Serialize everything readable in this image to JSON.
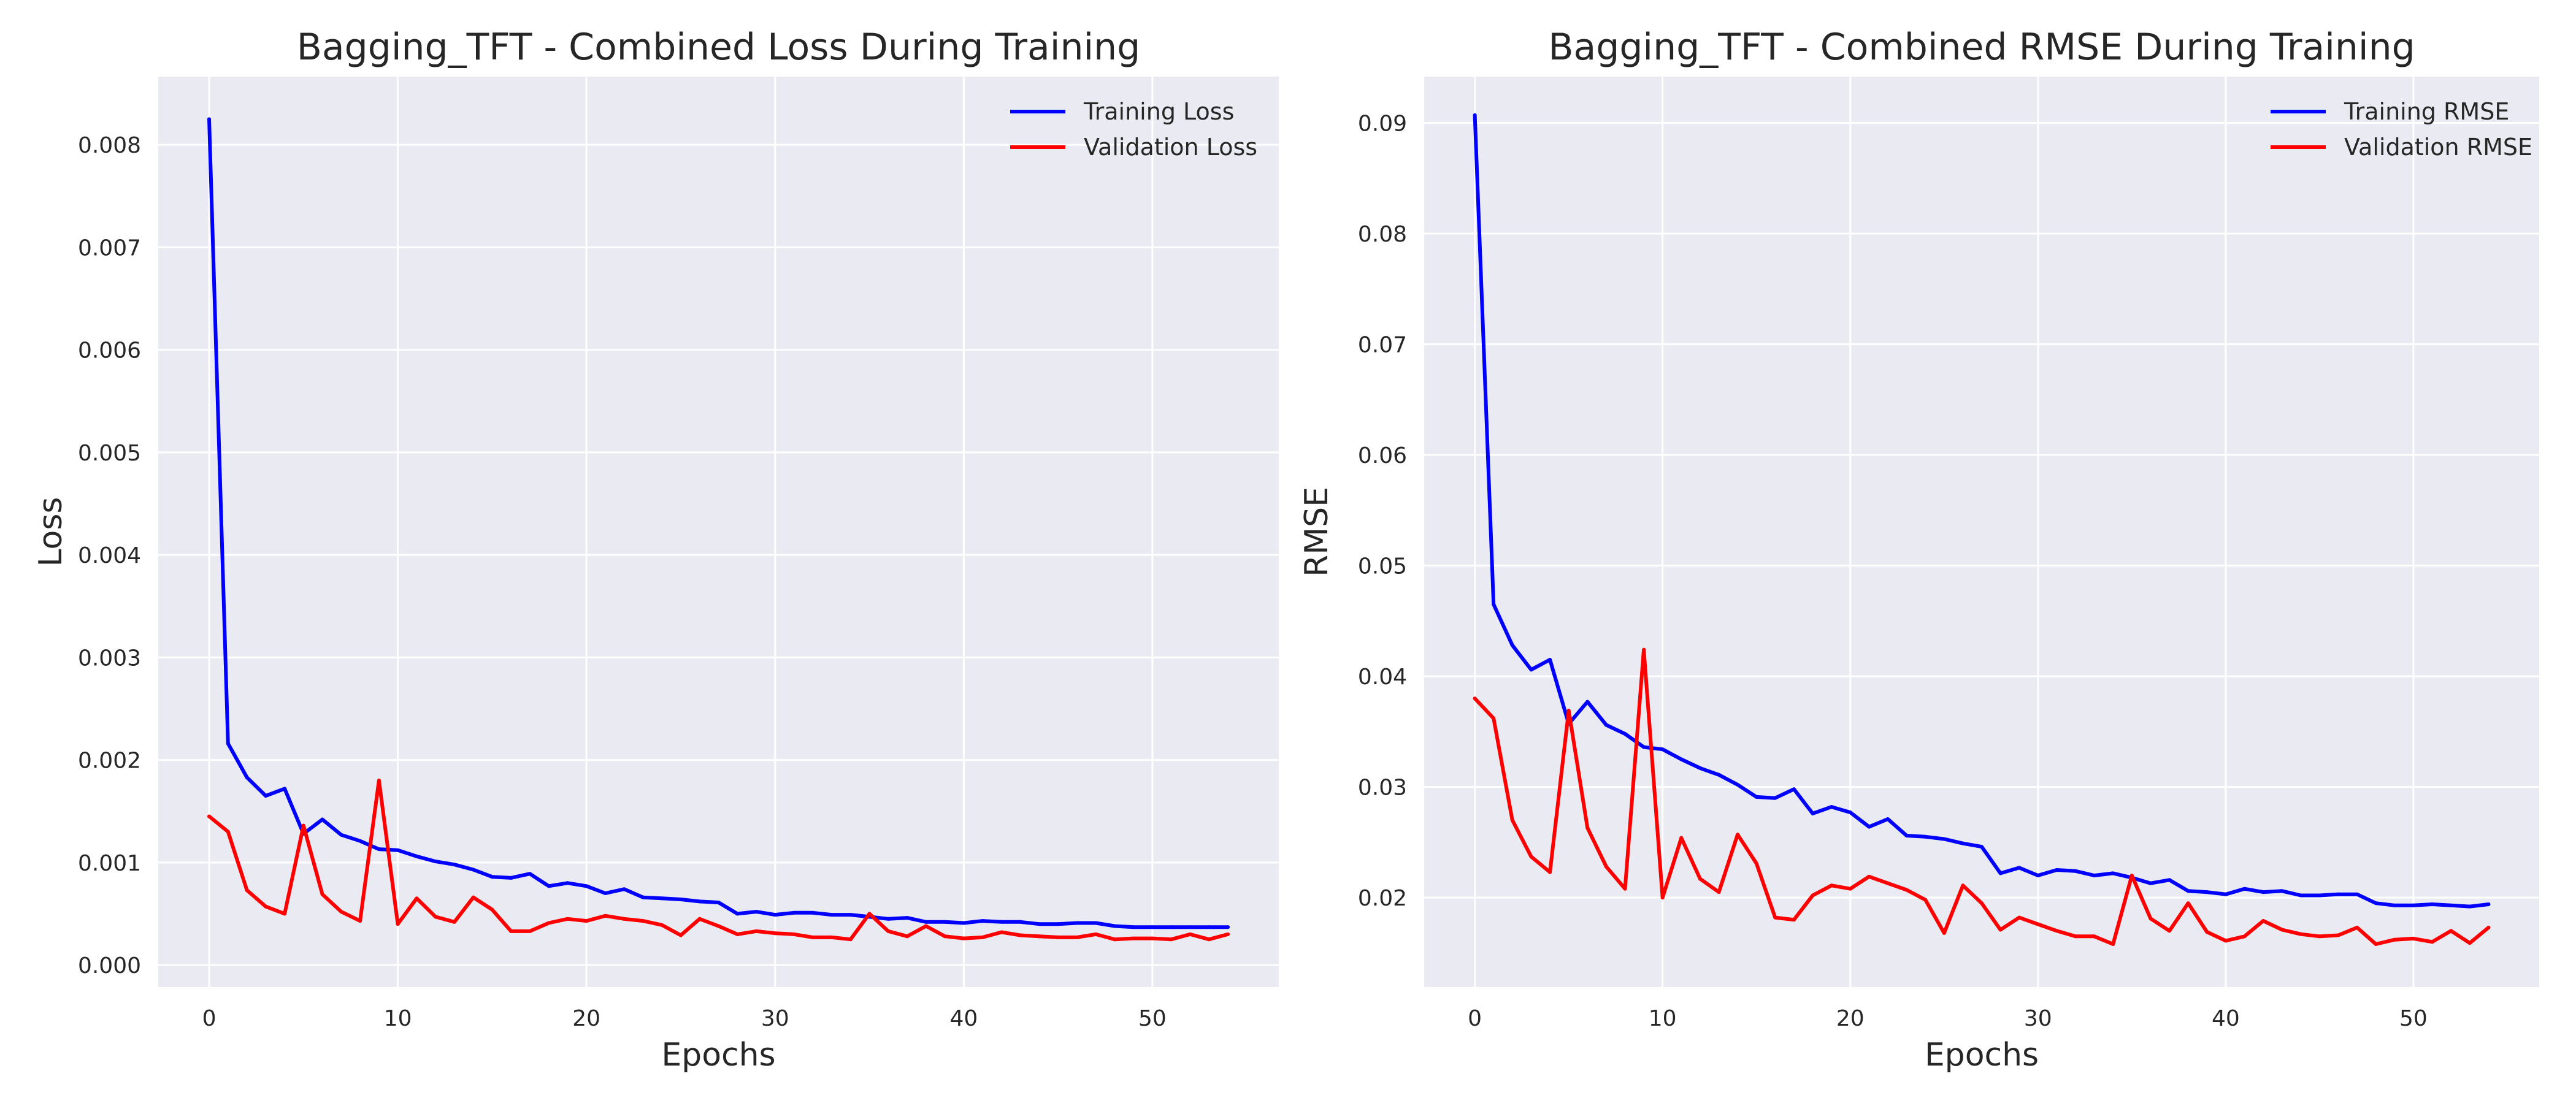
{
  "chart_data": [
    {
      "type": "line",
      "title": "Bagging_TFT - Combined Loss During Training",
      "xlabel": "Epochs",
      "ylabel": "Loss",
      "xlim": [
        -2.7,
        56.7
      ],
      "ylim": [
        -0.000215,
        0.008665
      ],
      "xticks": [
        0,
        10,
        20,
        30,
        40,
        50
      ],
      "xtick_labels": [
        "0",
        "10",
        "20",
        "30",
        "40",
        "50"
      ],
      "yticks": [
        0,
        0.001,
        0.002,
        0.003,
        0.004,
        0.005,
        0.006,
        0.007,
        0.008
      ],
      "ytick_labels": [
        "0.000",
        "0.001",
        "0.002",
        "0.003",
        "0.004",
        "0.005",
        "0.006",
        "0.007",
        "0.008"
      ],
      "grid": true,
      "legend": "upper right",
      "x": [
        0,
        1,
        2,
        3,
        4,
        5,
        6,
        7,
        8,
        9,
        10,
        11,
        12,
        13,
        14,
        15,
        16,
        17,
        18,
        19,
        20,
        21,
        22,
        23,
        24,
        25,
        26,
        27,
        28,
        29,
        30,
        31,
        32,
        33,
        34,
        35,
        36,
        37,
        38,
        39,
        40,
        41,
        42,
        43,
        44,
        45,
        46,
        47,
        48,
        49,
        50,
        51,
        52,
        53,
        54
      ],
      "series": [
        {
          "name": "Training Loss",
          "color": "#0000ff",
          "values": [
            0.00825,
            0.00216,
            0.00183,
            0.00165,
            0.00172,
            0.00128,
            0.00142,
            0.00127,
            0.00121,
            0.00113,
            0.00112,
            0.00106,
            0.00101,
            0.00098,
            0.00093,
            0.00086,
            0.00085,
            0.00089,
            0.00077,
            0.0008,
            0.00077,
            0.0007,
            0.00074,
            0.00066,
            0.00065,
            0.00064,
            0.00062,
            0.00061,
            0.0005,
            0.00052,
            0.00049,
            0.00051,
            0.00051,
            0.00049,
            0.00049,
            0.00047,
            0.00045,
            0.00046,
            0.00042,
            0.00042,
            0.00041,
            0.00043,
            0.00042,
            0.00042,
            0.0004,
            0.0004,
            0.00041,
            0.00041,
            0.00038,
            0.00037,
            0.00037,
            0.00037,
            0.00037,
            0.00037,
            0.00037
          ]
        },
        {
          "name": "Validation Loss",
          "color": "#ff0000",
          "values": [
            0.00145,
            0.0013,
            0.00073,
            0.00057,
            0.0005,
            0.00136,
            0.00069,
            0.00052,
            0.00043,
            0.0018,
            0.0004,
            0.00065,
            0.00047,
            0.00042,
            0.00066,
            0.00054,
            0.00033,
            0.00033,
            0.00041,
            0.00045,
            0.00043,
            0.00048,
            0.00045,
            0.00043,
            0.00039,
            0.00029,
            0.00045,
            0.00038,
            0.0003,
            0.00033,
            0.00031,
            0.0003,
            0.00027,
            0.00027,
            0.00025,
            0.0005,
            0.00033,
            0.00028,
            0.00038,
            0.00028,
            0.00026,
            0.00027,
            0.00032,
            0.00029,
            0.00028,
            0.00027,
            0.00027,
            0.0003,
            0.00025,
            0.00026,
            0.00026,
            0.00025,
            0.0003,
            0.00025,
            0.0003
          ]
        }
      ]
    },
    {
      "type": "line",
      "title": "Bagging_TFT - Combined RMSE During Training",
      "xlabel": "Epochs",
      "ylabel": "RMSE",
      "xlim": [
        -2.7,
        56.7
      ],
      "ylim": [
        0.01192,
        0.09418
      ],
      "xticks": [
        0,
        10,
        20,
        30,
        40,
        50
      ],
      "xtick_labels": [
        "0",
        "10",
        "20",
        "30",
        "40",
        "50"
      ],
      "yticks": [
        0.02,
        0.03,
        0.04,
        0.05,
        0.06,
        0.07,
        0.08,
        0.09
      ],
      "ytick_labels": [
        "0.02",
        "0.03",
        "0.04",
        "0.05",
        "0.06",
        "0.07",
        "0.08",
        "0.09"
      ],
      "grid": true,
      "legend": "upper right",
      "x": [
        0,
        1,
        2,
        3,
        4,
        5,
        6,
        7,
        8,
        9,
        10,
        11,
        12,
        13,
        14,
        15,
        16,
        17,
        18,
        19,
        20,
        21,
        22,
        23,
        24,
        25,
        26,
        27,
        28,
        29,
        30,
        31,
        32,
        33,
        34,
        35,
        36,
        37,
        38,
        39,
        40,
        41,
        42,
        43,
        44,
        45,
        46,
        47,
        48,
        49,
        50,
        51,
        52,
        53,
        54
      ],
      "series": [
        {
          "name": "Training RMSE",
          "color": "#0000ff",
          "values": [
            0.0907,
            0.0465,
            0.0428,
            0.0406,
            0.0415,
            0.0357,
            0.0377,
            0.0356,
            0.0348,
            0.0336,
            0.0334,
            0.0325,
            0.0317,
            0.0311,
            0.0302,
            0.0291,
            0.029,
            0.0298,
            0.0276,
            0.0282,
            0.0277,
            0.0264,
            0.0271,
            0.0256,
            0.0255,
            0.0253,
            0.0249,
            0.0246,
            0.0222,
            0.0227,
            0.022,
            0.0225,
            0.0224,
            0.022,
            0.0222,
            0.0218,
            0.0213,
            0.0216,
            0.0206,
            0.0205,
            0.0203,
            0.0208,
            0.0205,
            0.0206,
            0.0202,
            0.0202,
            0.0203,
            0.0203,
            0.0195,
            0.0193,
            0.0193,
            0.0194,
            0.0193,
            0.0192,
            0.0194
          ]
        },
        {
          "name": "Validation RMSE",
          "color": "#ff0000",
          "values": [
            0.038,
            0.0362,
            0.027,
            0.0237,
            0.0223,
            0.0369,
            0.0263,
            0.0228,
            0.0208,
            0.0424,
            0.02,
            0.0254,
            0.0217,
            0.0205,
            0.0257,
            0.0231,
            0.0182,
            0.018,
            0.0202,
            0.0211,
            0.0208,
            0.0219,
            0.0213,
            0.0207,
            0.0198,
            0.0168,
            0.0211,
            0.0195,
            0.0171,
            0.0182,
            0.0176,
            0.017,
            0.0165,
            0.0165,
            0.0158,
            0.022,
            0.0181,
            0.017,
            0.0195,
            0.0169,
            0.0161,
            0.0165,
            0.0179,
            0.0171,
            0.0167,
            0.0165,
            0.0166,
            0.0173,
            0.0158,
            0.0162,
            0.0163,
            0.016,
            0.017,
            0.0159,
            0.0173
          ]
        }
      ]
    }
  ]
}
